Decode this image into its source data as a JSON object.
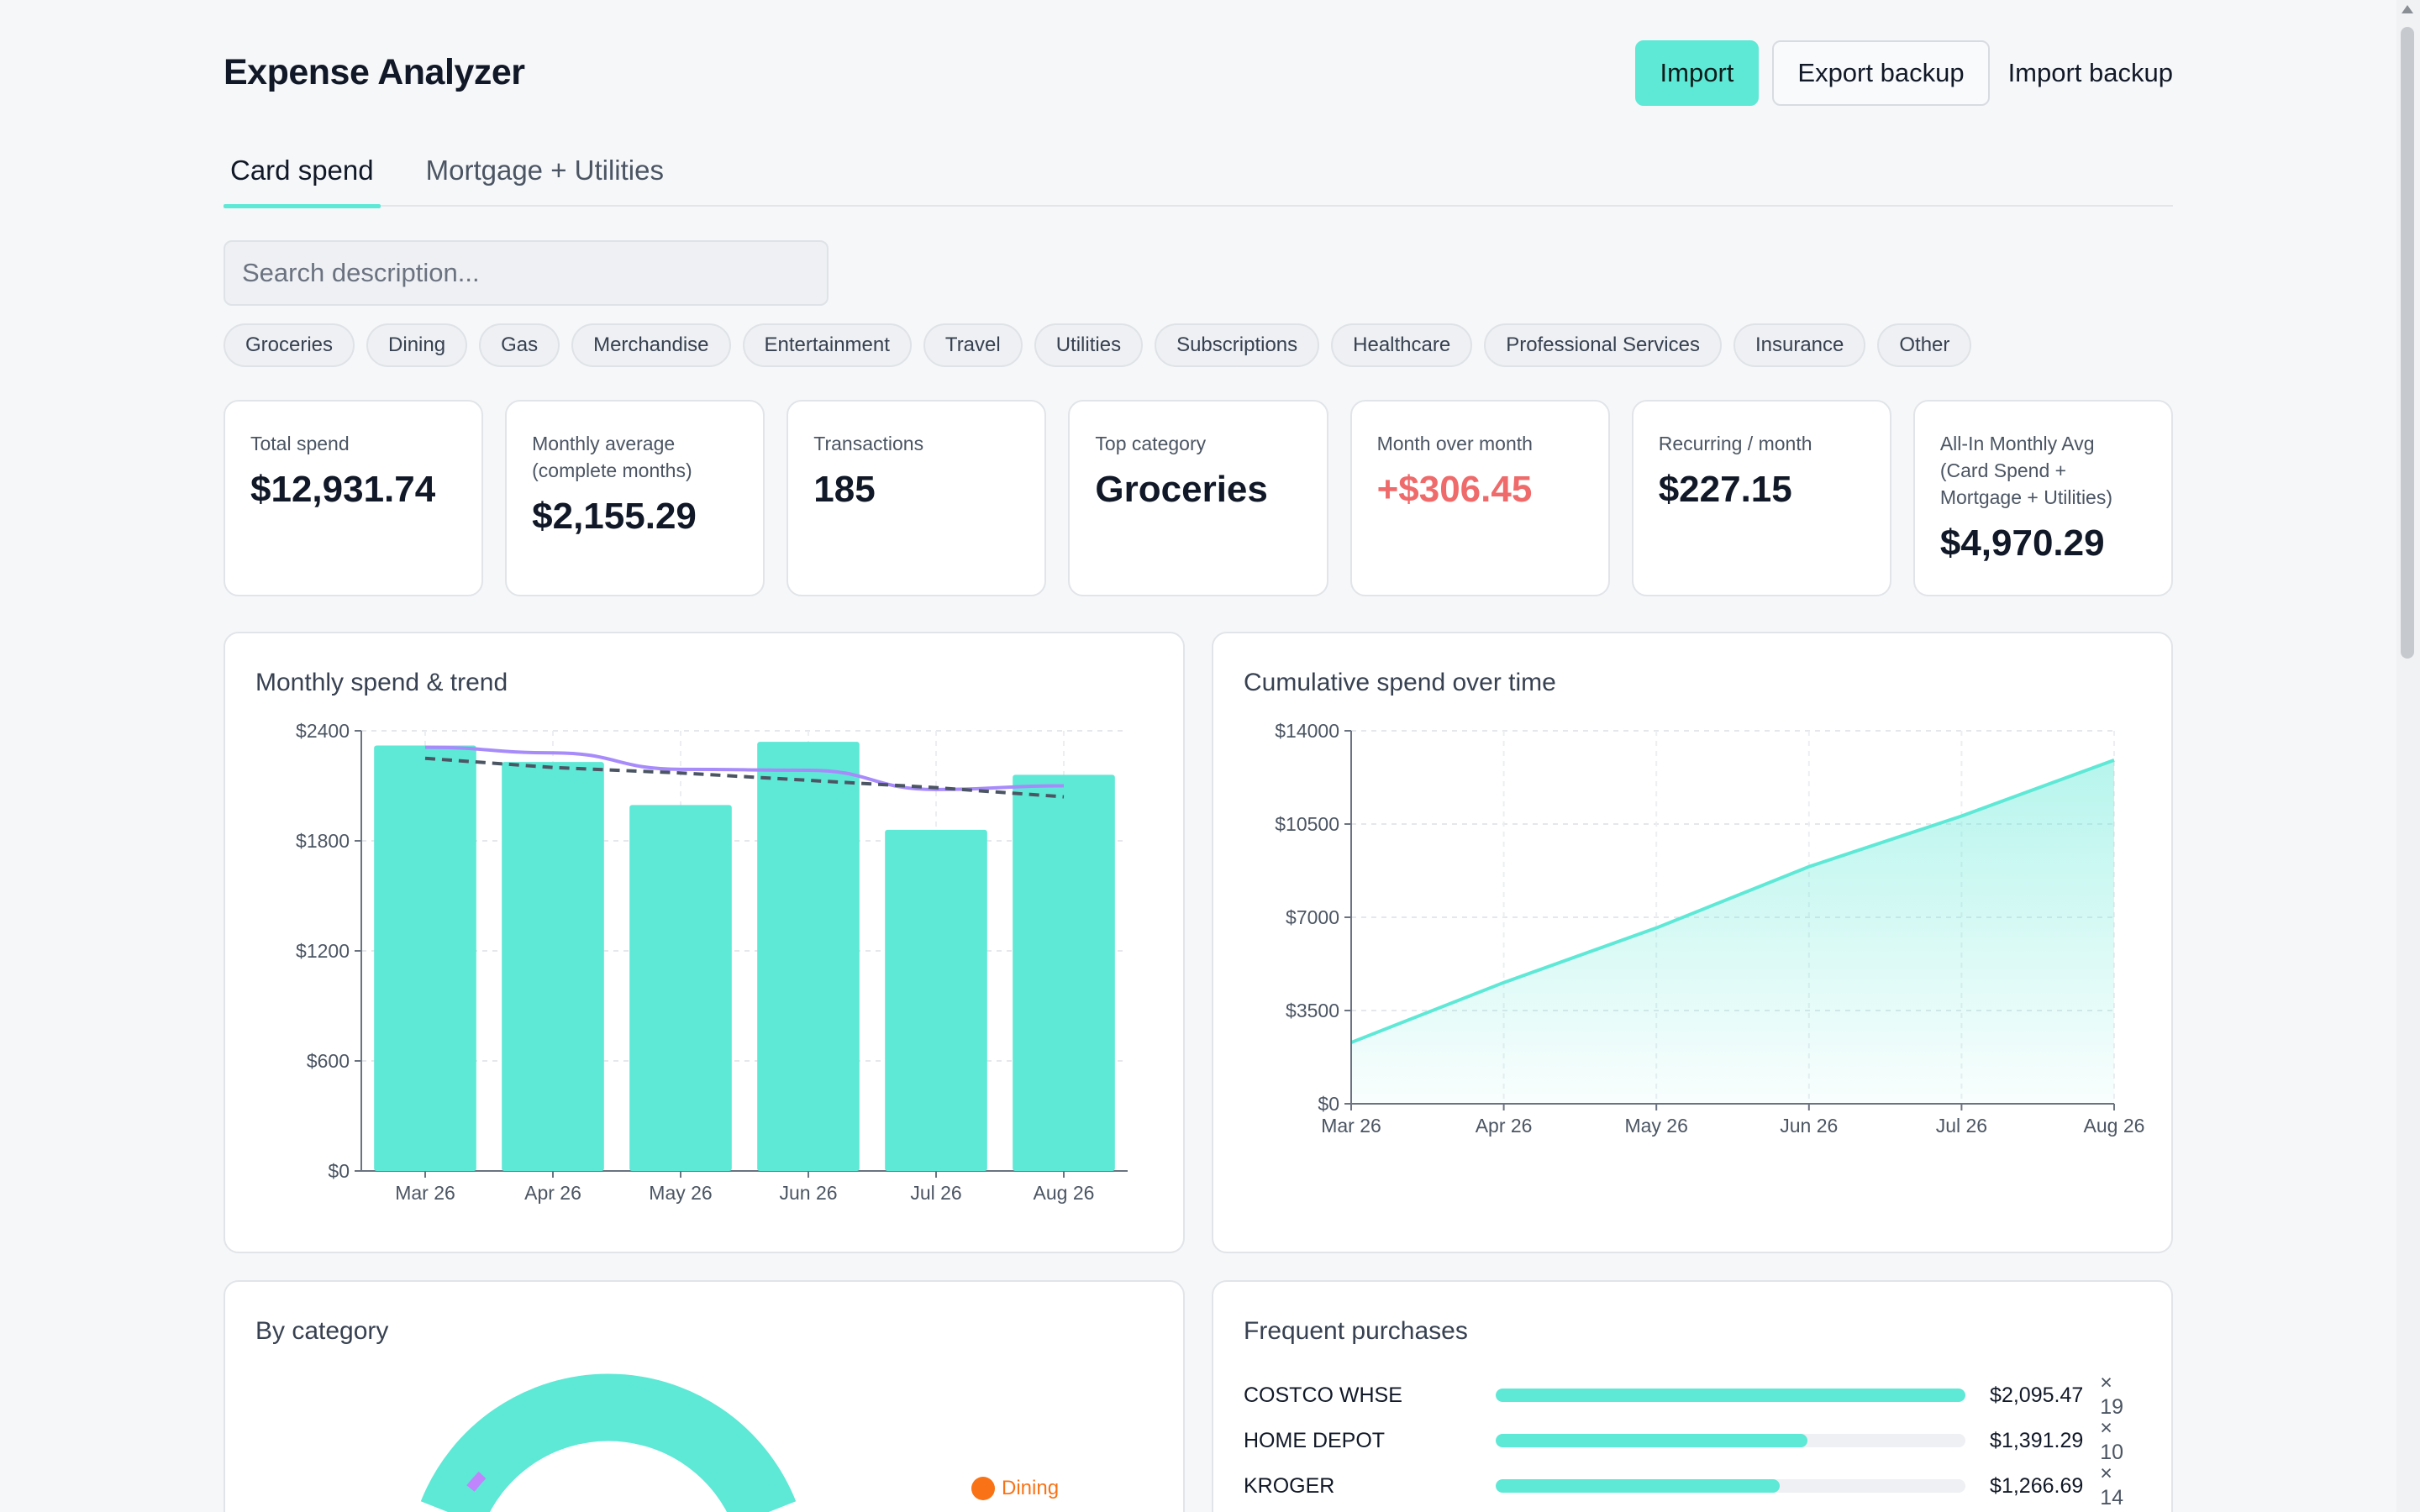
{
  "header": {
    "title": "Expense Analyzer",
    "import_label": "Import",
    "export_backup_label": "Export backup",
    "import_backup_label": "Import backup"
  },
  "tabs": [
    {
      "label": "Card spend",
      "active": true
    },
    {
      "label": "Mortgage + Utilities",
      "active": false
    }
  ],
  "search": {
    "placeholder": "Search description...",
    "value": ""
  },
  "categories": [
    "Groceries",
    "Dining",
    "Gas",
    "Merchandise",
    "Entertainment",
    "Travel",
    "Utilities",
    "Subscriptions",
    "Healthcare",
    "Professional Services",
    "Insurance",
    "Other"
  ],
  "stats": [
    {
      "label": "Total spend",
      "value": "$12,931.74"
    },
    {
      "label": "Monthly average (complete months)",
      "value": "$2,155.29"
    },
    {
      "label": "Transactions",
      "value": "185"
    },
    {
      "label": "Top category",
      "value": "Groceries"
    },
    {
      "label": "Month over month",
      "value": "+$306.45",
      "color": "#ef6b6b"
    },
    {
      "label": "Recurring / month",
      "value": "$227.15"
    },
    {
      "label": "All-In Monthly Avg (Card Spend + Mortgage + Utilities)",
      "value": "$4,970.29"
    }
  ],
  "panels": {
    "monthly_title": "Monthly spend & trend",
    "cumulative_title": "Cumulative spend over time",
    "category_title": "By category",
    "frequent_title": "Frequent purchases"
  },
  "colors": {
    "accent": "#5ee8d6",
    "trend_line": "#a78bfa",
    "negative": "#ef6b6b",
    "dining": "#f97316",
    "entertainment": "#c084fc"
  },
  "chart_data": [
    {
      "type": "bar",
      "title": "Monthly spend & trend",
      "categories": [
        "Mar 26",
        "Apr 26",
        "May 26",
        "Jun 26",
        "Jul 26",
        "Aug 26"
      ],
      "ylim": [
        0,
        2400
      ],
      "yticks": [
        "$0",
        "$600",
        "$1200",
        "$1800",
        "$2400"
      ],
      "ytick_values": [
        0,
        600,
        1200,
        1800,
        2400
      ],
      "grid": true,
      "series": [
        {
          "type": "bar",
          "values": [
            2320,
            2230,
            1995,
            2340,
            1860,
            2160
          ]
        },
        {
          "type": "line",
          "style": "solid",
          "values": [
            2310,
            2280,
            2190,
            2185,
            2080,
            2100
          ]
        },
        {
          "type": "line",
          "style": "dashed",
          "values": [
            2250,
            2200,
            2170,
            2130,
            2090,
            2040
          ]
        }
      ]
    },
    {
      "type": "area",
      "title": "Cumulative spend over time",
      "categories": [
        "Mar 26",
        "Apr 26",
        "May 26",
        "Jun 26",
        "Jul 26",
        "Aug 26"
      ],
      "ylim": [
        0,
        14000
      ],
      "yticks": [
        "$0",
        "$3500",
        "$7000",
        "$10500",
        "$14000"
      ],
      "ytick_values": [
        0,
        3500,
        7000,
        10500,
        14000
      ],
      "grid": true,
      "values": [
        2300,
        4550,
        6600,
        8900,
        10800,
        12900
      ]
    }
  ],
  "category_legend": [
    {
      "name": "Dining",
      "color": "#f97316"
    }
  ],
  "frequent": [
    {
      "name": "COSTCO WHSE",
      "amount": "$2,095.47",
      "count": "× 19",
      "fraction": 1.0
    },
    {
      "name": "HOME DEPOT",
      "amount": "$1,391.29",
      "count": "× 10",
      "fraction": 0.664
    },
    {
      "name": "KROGER",
      "amount": "$1,266.69",
      "count": "× 14",
      "fraction": 0.604
    }
  ]
}
